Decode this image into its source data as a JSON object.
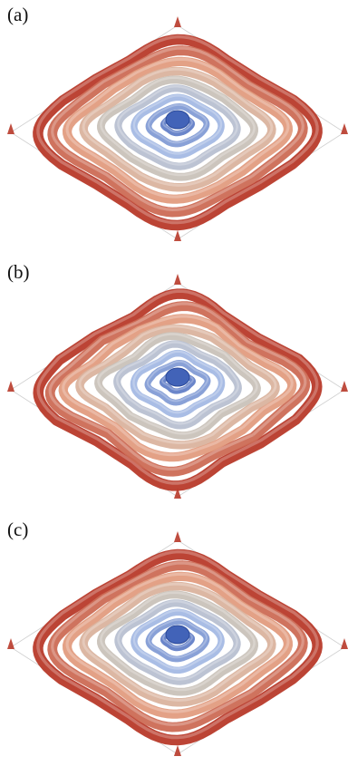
{
  "figure": {
    "panels": [
      {
        "label": "(a)",
        "variant": "a"
      },
      {
        "label": "(b)",
        "variant": "b"
      },
      {
        "label": "(c)",
        "variant": "c"
      }
    ],
    "colors": {
      "blue_dark": "#4263b8",
      "blue_light": "#a9bde6",
      "grey": "#c8c3ba",
      "red_light": "#e6a88a",
      "red_dark": "#b83a2a",
      "edge": "#cfcfcf"
    }
  }
}
